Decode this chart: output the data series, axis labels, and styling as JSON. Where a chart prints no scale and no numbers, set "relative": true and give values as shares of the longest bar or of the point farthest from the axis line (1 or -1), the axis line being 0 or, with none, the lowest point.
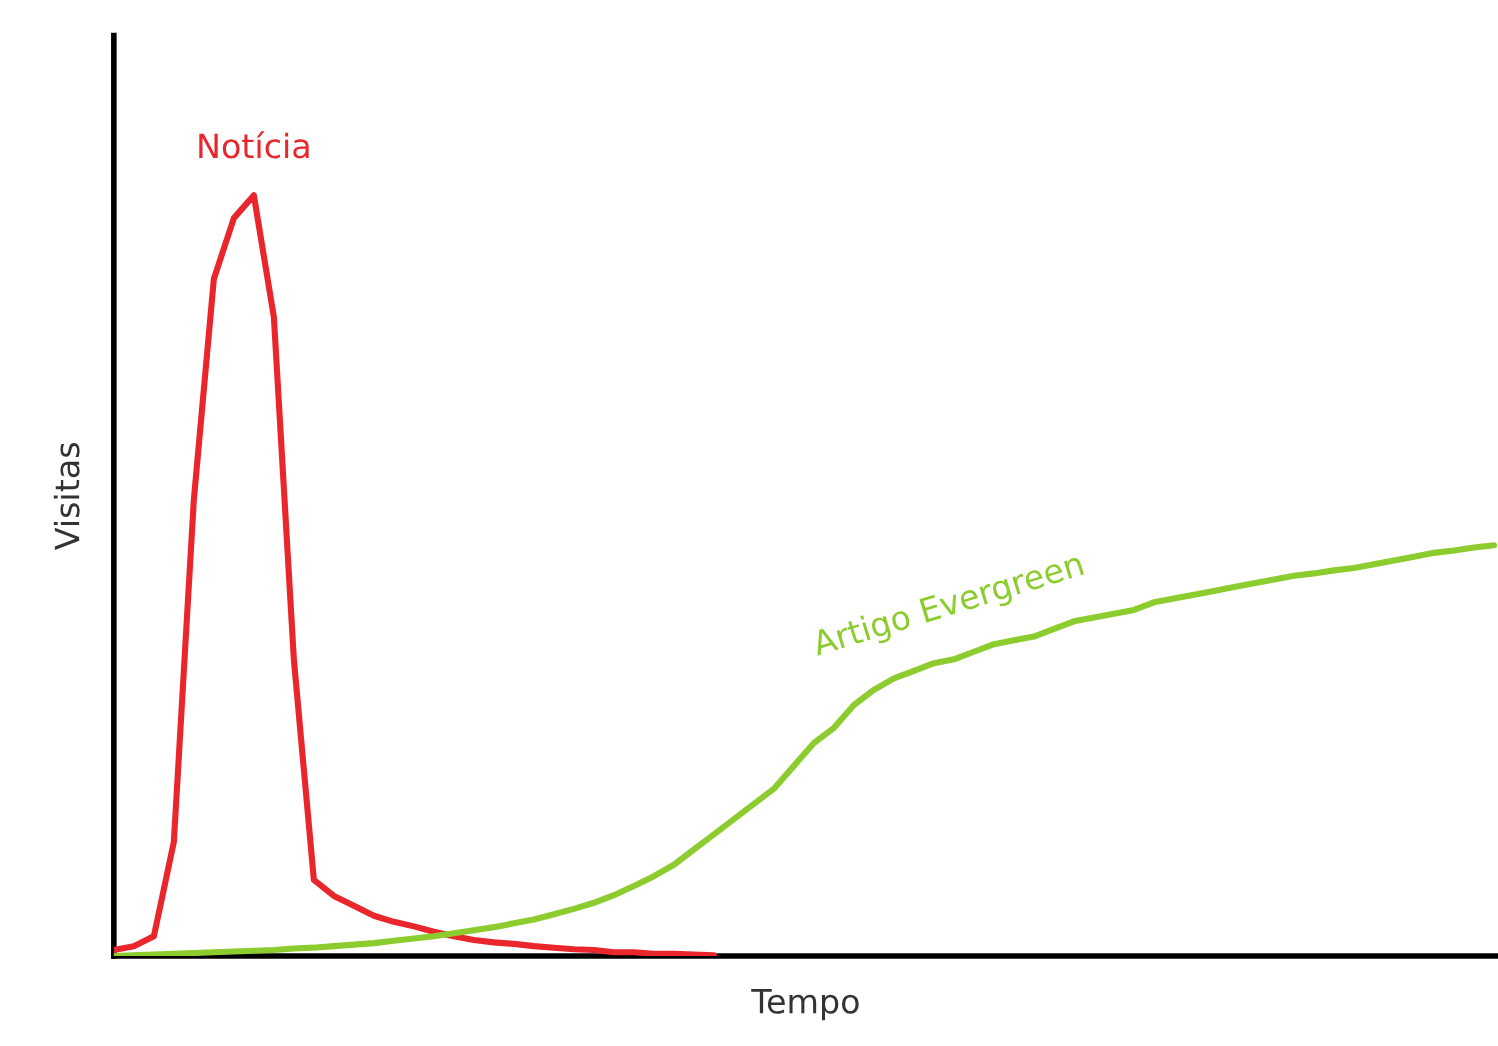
{
  "chart_data": {
    "type": "line",
    "relative": true,
    "xlabel": "Tempo",
    "ylabel": "Visitas",
    "legend": false,
    "grid": false,
    "marker": "none",
    "line_style": "solid",
    "categories": [
      null,
      null,
      null,
      null,
      null,
      null,
      null,
      null,
      null,
      null,
      null,
      null,
      null,
      null,
      null,
      null,
      null,
      null,
      null,
      null,
      null,
      null,
      null,
      null,
      null,
      null,
      null,
      null,
      null,
      null,
      null,
      null,
      null,
      null,
      null,
      null,
      null,
      null,
      null,
      null,
      null,
      null,
      null,
      null,
      null,
      null,
      null,
      null,
      null,
      null,
      null,
      null,
      null,
      null,
      null,
      null,
      null,
      null,
      null,
      null,
      null,
      null,
      null,
      null,
      null,
      null,
      null,
      null,
      null,
      null
    ],
    "series": [
      {
        "name": "Notícia",
        "color": "#e8262b",
        "values": [
          0.008,
          0.013,
          0.026,
          0.15,
          0.6,
          0.89,
          0.97,
          1.0,
          0.84,
          0.39,
          0.1,
          0.079,
          0.066,
          0.053,
          0.045,
          0.039,
          0.032,
          0.026,
          0.021,
          0.018,
          0.016,
          0.013,
          0.011,
          0.009,
          0.008,
          0.005,
          0.005,
          0.003,
          0.003,
          0.002,
          0.001,
          null,
          null,
          null,
          null,
          null,
          null,
          null,
          null,
          null,
          null,
          null,
          null,
          null,
          null,
          null,
          null,
          null,
          null,
          null,
          null,
          null,
          null,
          null,
          null,
          null,
          null,
          null,
          null,
          null,
          null,
          null,
          null,
          null,
          null,
          null,
          null,
          null,
          null,
          null
        ]
      },
      {
        "name": "Artigo Evergreen",
        "color": "#8ccc2e",
        "values": [
          0,
          0.001,
          0.002,
          0.003,
          0.004,
          0.005,
          0.006,
          0.007,
          0.008,
          0.01,
          0.011,
          0.013,
          0.015,
          0.017,
          0.02,
          0.023,
          0.026,
          0.03,
          0.034,
          0.038,
          0.043,
          0.048,
          0.055,
          0.062,
          0.07,
          0.08,
          0.092,
          0.105,
          0.12,
          0.14,
          0.16,
          0.18,
          0.2,
          0.22,
          0.25,
          0.28,
          0.3,
          0.33,
          0.35,
          0.365,
          0.375,
          0.385,
          0.39,
          0.4,
          0.41,
          0.415,
          0.42,
          0.43,
          0.44,
          0.445,
          0.45,
          0.455,
          0.465,
          0.47,
          0.475,
          0.48,
          0.485,
          0.49,
          0.495,
          0.5,
          0.503,
          0.507,
          0.51,
          0.515,
          0.52,
          0.525,
          0.53,
          0.533,
          0.537,
          0.54
        ]
      }
    ]
  }
}
